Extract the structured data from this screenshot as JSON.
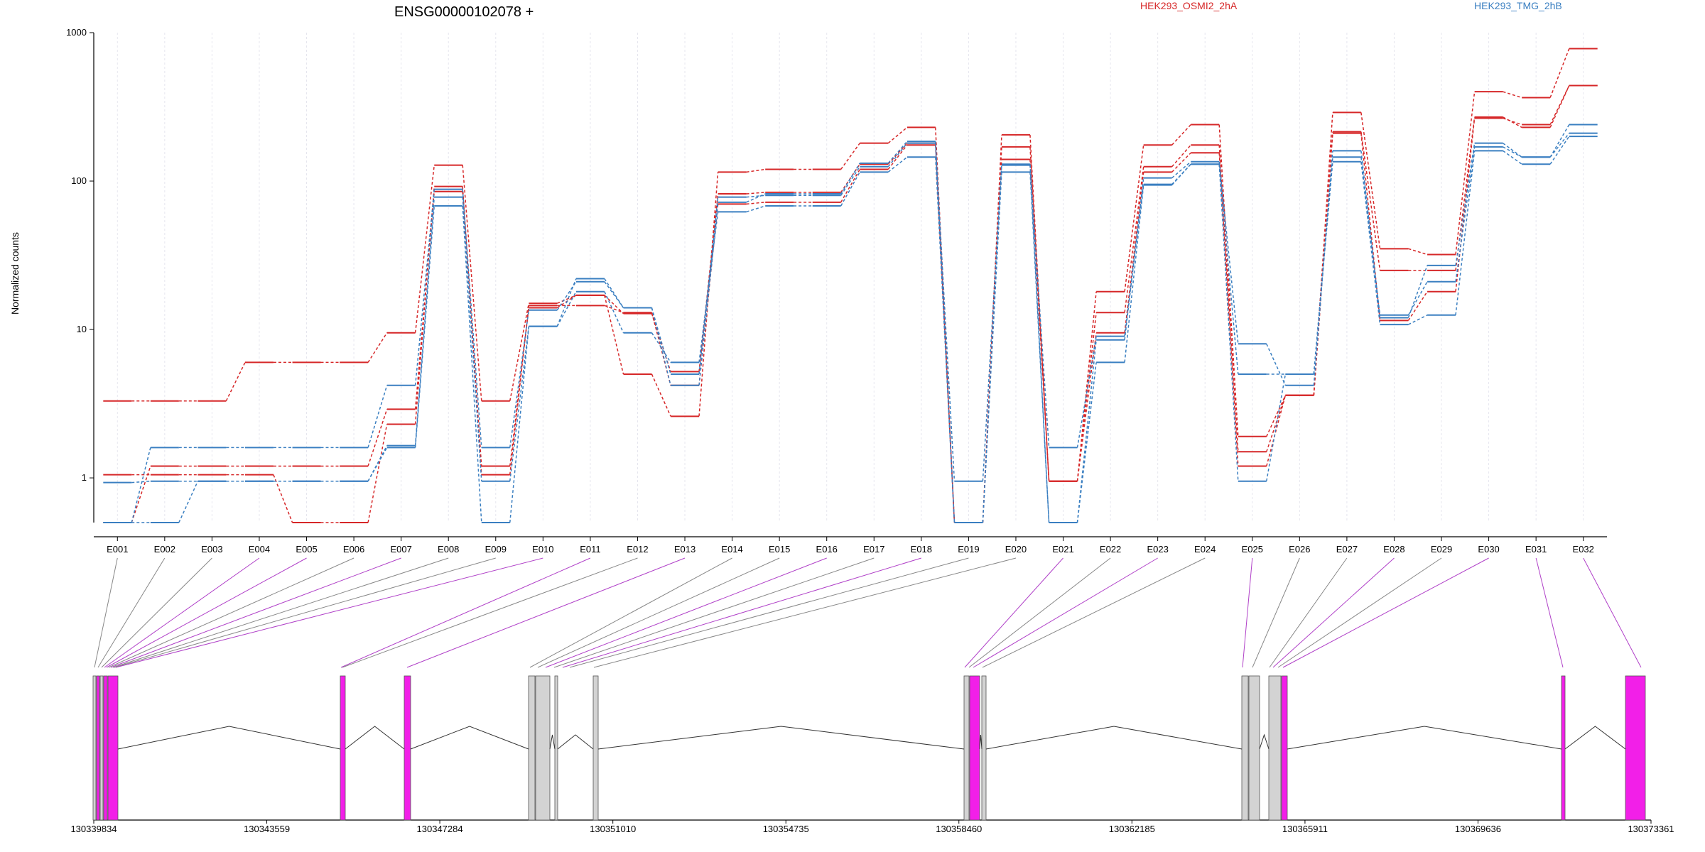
{
  "chart_data": {
    "type": "line",
    "title": "ENSG00000102078 +",
    "ylabel": "Normalized counts",
    "yscale": "log",
    "ylim": [
      0.5,
      1000
    ],
    "yticks": [
      "1000",
      "100",
      "10",
      "1"
    ],
    "categories": [
      "E001",
      "E002",
      "E003",
      "E004",
      "E005",
      "E006",
      "E007",
      "E008",
      "E009",
      "E010",
      "E011",
      "E012",
      "E013",
      "E014",
      "E015",
      "E016",
      "E017",
      "E018",
      "E019",
      "E020",
      "E021",
      "E022",
      "E023",
      "E024",
      "E025",
      "E026",
      "E027",
      "E028",
      "E029",
      "E030",
      "E031",
      "E032"
    ],
    "legend": [
      {
        "name": "HEK293_OSMI2_2hA",
        "color": "#d62728"
      },
      {
        "name": "HEK293_TMG_2hB",
        "color": "#3a7fc1"
      }
    ],
    "series": [
      {
        "group": "HEK293_OSMI2_2hA",
        "color": "#d62728",
        "values": [
          3.3,
          3.3,
          3.3,
          6,
          6,
          6,
          9.5,
          128,
          3.3,
          15,
          17,
          5,
          2.6,
          115,
          120,
          120,
          180,
          230,
          0.5,
          205,
          0.95,
          18,
          175,
          240,
          1.9,
          3.6,
          290,
          35,
          32,
          400,
          365,
          780
        ]
      },
      {
        "group": "HEK293_OSMI2_2hA",
        "color": "#d62728",
        "values": [
          1.05,
          1.05,
          1.05,
          1.05,
          0.5,
          0.5,
          2.3,
          92,
          1.05,
          14.5,
          14.5,
          13,
          4.2,
          70,
          72,
          72,
          120,
          175,
          0.5,
          170,
          0.95,
          13,
          125,
          175,
          1.5,
          3.6,
          215,
          25,
          25,
          270,
          230,
          440
        ]
      },
      {
        "group": "HEK293_OSMI2_2hA",
        "color": "#d62728",
        "values": [
          0.5,
          1.2,
          1.2,
          1.2,
          1.2,
          1.2,
          2.9,
          85,
          1.2,
          14,
          17,
          12.8,
          5.2,
          82,
          84,
          84,
          130,
          180,
          0.5,
          140,
          0.95,
          9.5,
          115,
          155,
          1.2,
          3.6,
          210,
          11.5,
          18,
          265,
          240,
          440
        ]
      },
      {
        "group": "HEK293_TMG_2hB",
        "color": "#3a7fc1",
        "values": [
          0.5,
          0.5,
          0.95,
          0.95,
          0.95,
          0.95,
          1.6,
          68,
          0.5,
          10.5,
          18,
          9.5,
          6,
          62,
          68,
          68,
          115,
          145,
          0.5,
          115,
          0.5,
          6,
          94,
          130,
          0.95,
          5,
          135,
          10.8,
          12.5,
          160,
          130,
          200
        ]
      },
      {
        "group": "HEK293_TMG_2hB",
        "color": "#3a7fc1",
        "values": [
          0.93,
          0.95,
          0.95,
          0.95,
          0.95,
          0.95,
          1.65,
          78,
          0.95,
          10.5,
          22,
          14,
          5,
          78,
          80,
          80,
          125,
          180,
          0.95,
          130,
          0.5,
          8.5,
          105,
          135,
          8,
          4.2,
          160,
          12,
          27,
          180,
          145,
          210
        ]
      },
      {
        "group": "HEK293_TMG_2hB",
        "color": "#3a7fc1",
        "values": [
          0.5,
          1.6,
          1.6,
          1.6,
          1.6,
          1.6,
          4.2,
          88,
          1.6,
          13.5,
          21,
          14,
          4.2,
          72,
          82,
          82,
          132,
          185,
          0.5,
          128,
          1.6,
          9,
          95,
          130,
          5,
          5,
          145,
          12.5,
          21,
          170,
          145,
          240
        ]
      }
    ],
    "genomic_ticks": [
      "130339834",
      "130343559",
      "130347284",
      "130351010",
      "130354735",
      "130358460",
      "130362185",
      "130365911",
      "130369636",
      "130373361"
    ],
    "exon_colors": {
      "counted": "#f21fe8",
      "other": "#d3d3d3"
    }
  }
}
